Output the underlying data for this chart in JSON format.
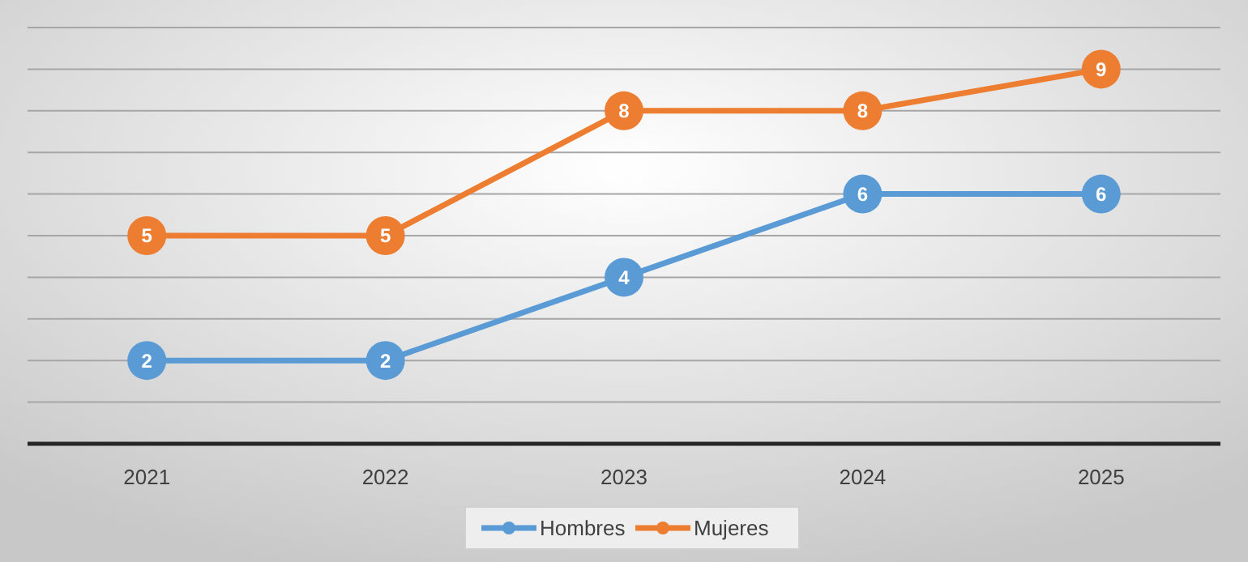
{
  "chart_data": {
    "type": "line",
    "categories": [
      "2021",
      "2022",
      "2023",
      "2024",
      "2025"
    ],
    "series": [
      {
        "name": "Hombres",
        "color": "#5b9bd5",
        "values": [
          2,
          2,
          4,
          6,
          6
        ]
      },
      {
        "name": "Mujeres",
        "color": "#ed7d31",
        "values": [
          5,
          5,
          8,
          8,
          9
        ]
      }
    ],
    "ylim": [
      0,
      10
    ],
    "yticks": [
      {
        "value": 0,
        "label": null
      },
      {
        "value": 1,
        "label": null
      },
      {
        "value": 2,
        "label": null
      },
      {
        "value": 3,
        "label": null
      },
      {
        "value": 4,
        "label": null
      },
      {
        "value": 5,
        "label": null
      },
      {
        "value": 6,
        "label": null
      },
      {
        "value": 7,
        "label": null
      },
      {
        "value": 8,
        "label": null
      },
      {
        "value": 9,
        "label": null
      },
      {
        "value": 10,
        "label": null
      }
    ],
    "tick_labels": "x",
    "grid": "y",
    "legend": "bottom",
    "marker": "circle",
    "line_style": "solid",
    "data_labels": true
  }
}
